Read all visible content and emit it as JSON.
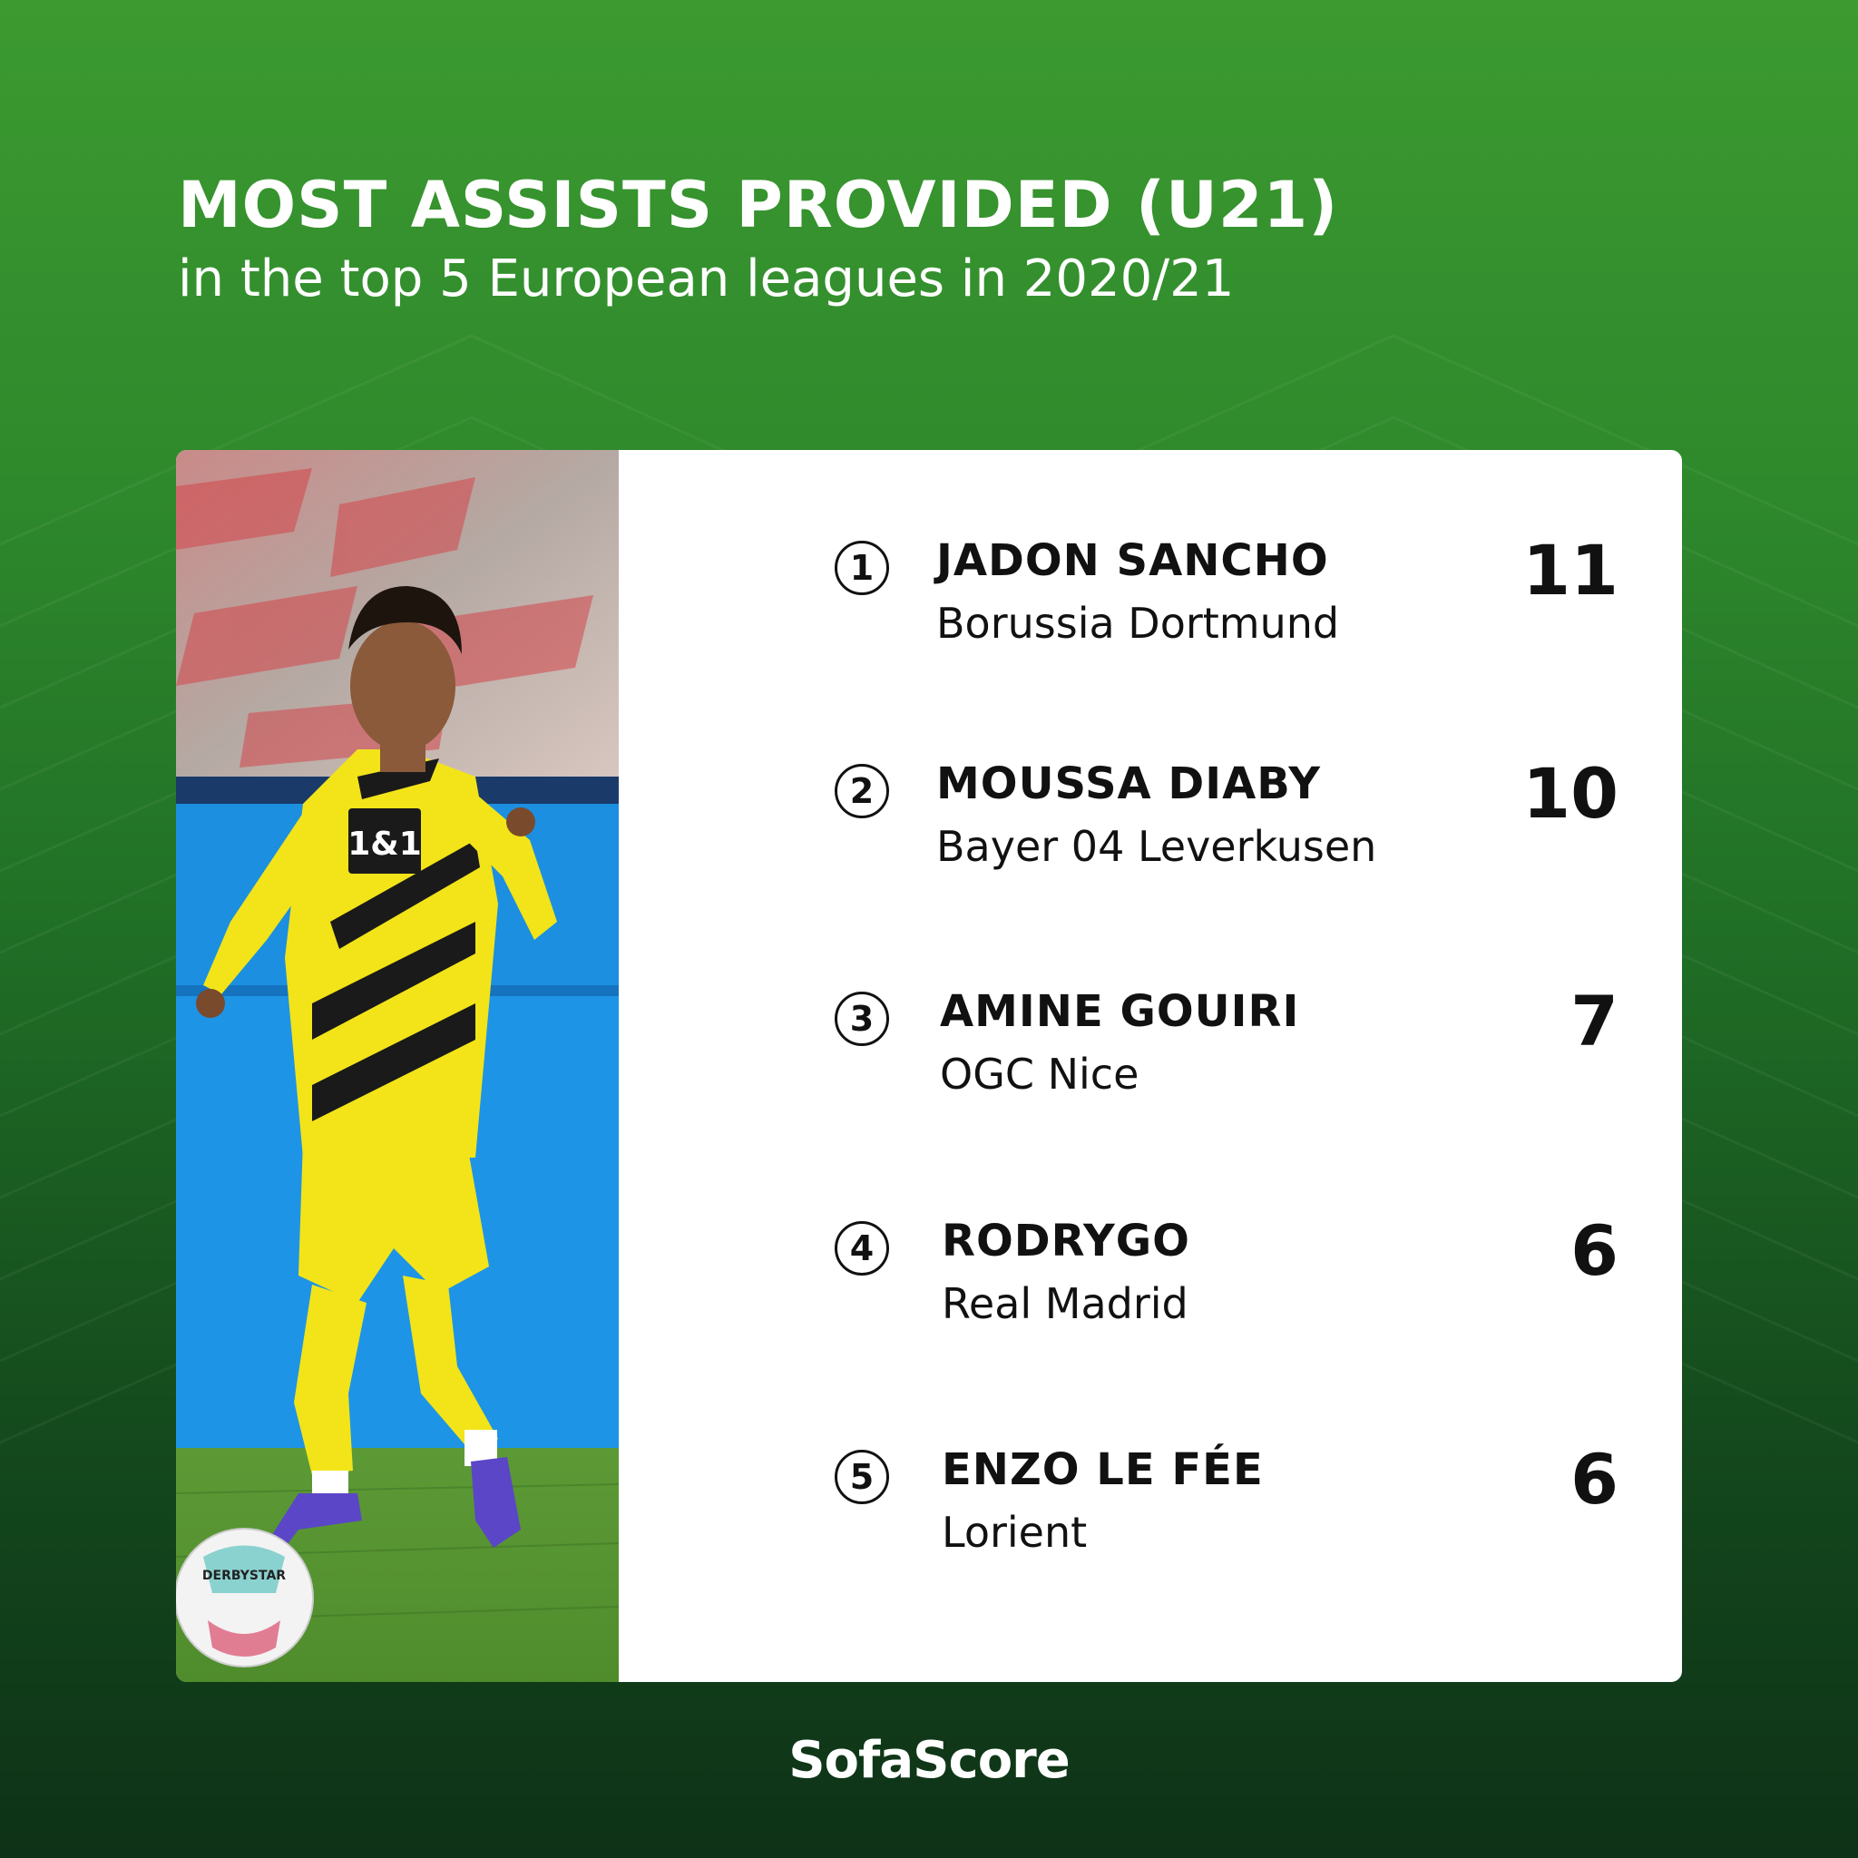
{
  "header": {
    "title": "MOST ASSISTS PROVIDED (U21)",
    "subtitle": "in the top 5 European leagues in 2020/21"
  },
  "photo": {
    "shirt_sponsor": "1&1",
    "ball_text": "DERBYSTAR"
  },
  "ranking": [
    {
      "rank": "1",
      "name": "JADON SANCHO",
      "team": "Borussia Dortmund",
      "value": "11"
    },
    {
      "rank": "2",
      "name": "MOUSSA DIABY",
      "team": "Bayer 04 Leverkusen",
      "value": "10"
    },
    {
      "rank": "3",
      "name": "AMINE GOUIRI",
      "team": "OGC Nice",
      "value": "7"
    },
    {
      "rank": "4",
      "name": "RODRYGO",
      "team": "Real Madrid",
      "value": "6"
    },
    {
      "rank": "5",
      "name": "ENZO LE FÉE",
      "team": "Lorient",
      "value": "6"
    }
  ],
  "footer": {
    "brand": "SofaScore"
  },
  "colors": {
    "background_top": "#3c9a30",
    "background_bottom": "#0e3217",
    "card": "#ffffff",
    "text_dark": "#111111",
    "kit_yellow": "#f2e419"
  }
}
